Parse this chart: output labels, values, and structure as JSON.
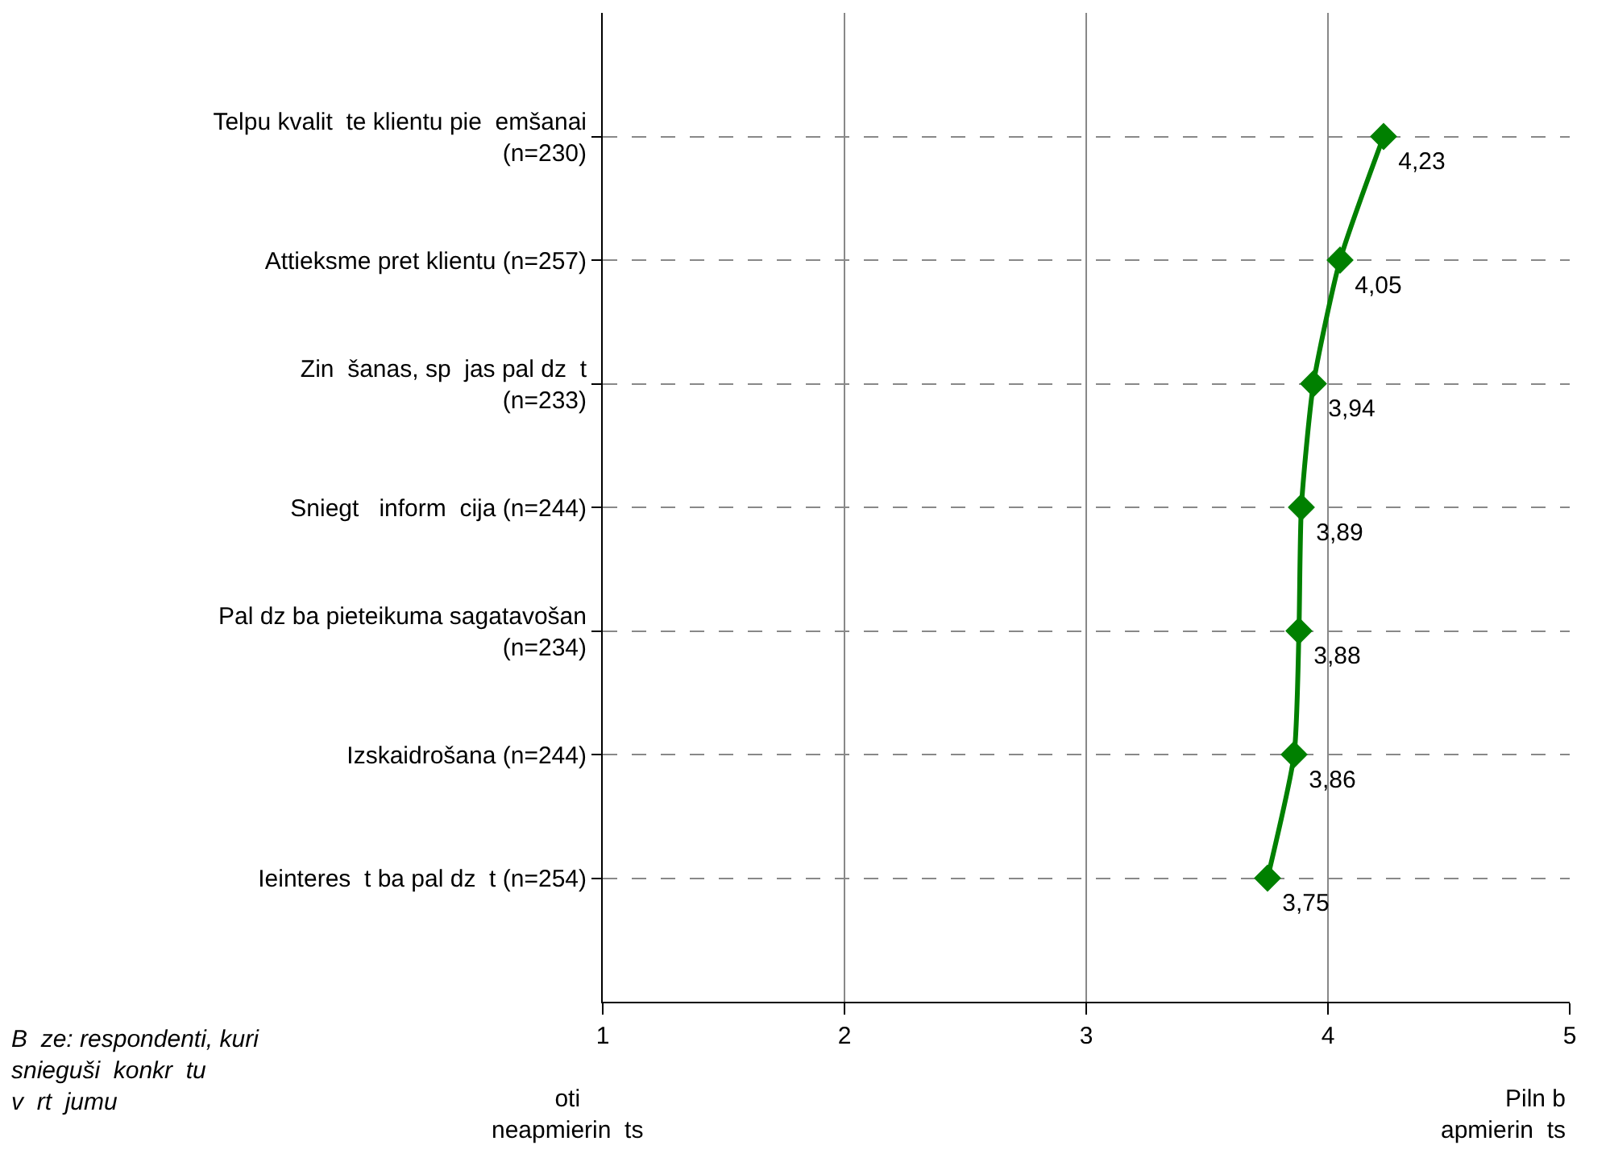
{
  "chart_data": {
    "type": "line",
    "categories": [
      "Telpu kvalit  te klientu pie  emšanai\n(n=230)",
      "Attieksme pret klientu (n=257)",
      "Zin  šanas, sp  jas pal dz  t\n(n=233)",
      "Sniegt   inform  cija (n=244)",
      "Pal dz ba pieteikuma sagatavošan\n(n=234)",
      "Izskaidrošana (n=244)",
      "Ieinteres  t ba pal dz  t (n=254)"
    ],
    "orientation": "horizontal",
    "series": [
      {
        "color": "#008000",
        "values": [
          4.23,
          4.05,
          3.94,
          3.89,
          3.88,
          3.86,
          3.75
        ],
        "value_labels": [
          "4,23",
          "4,05",
          "3,94",
          "3,89",
          "3,88",
          "3,86",
          "3,75"
        ]
      }
    ],
    "xlim": [
      1,
      5
    ],
    "xticks": [
      1,
      2,
      3,
      4,
      5
    ],
    "grid": true,
    "marker": "diamond",
    "line_style": "solid",
    "annotations": [
      "B  ze: respondenti, kuri\nsnieguši  konkr  tu\nv  rt  jumu",
      "oti\nneapmierin  ts",
      "Piln b\napmierin  ts"
    ]
  }
}
